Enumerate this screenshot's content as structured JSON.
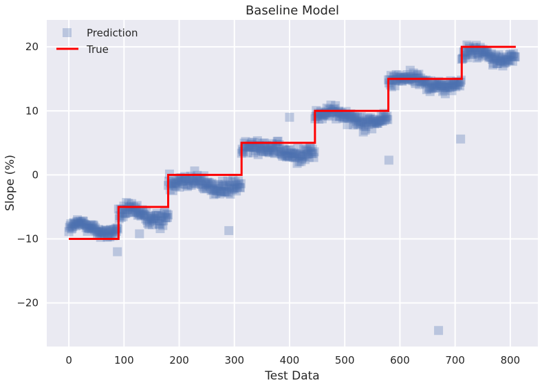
{
  "chart_data": {
    "type": "scatter",
    "title": "Baseline Model",
    "xlabel": "Test Data",
    "ylabel": "Slope (%)",
    "xlim": [
      -40,
      850
    ],
    "ylim": [
      -26.8,
      24.2
    ],
    "xticks": [
      0,
      100,
      200,
      300,
      400,
      500,
      600,
      700,
      800
    ],
    "yticks": [
      -20,
      -10,
      0,
      10,
      20
    ],
    "xtick_labels": [
      "0",
      "100",
      "200",
      "300",
      "400",
      "500",
      "600",
      "700",
      "800"
    ],
    "ytick_labels": [
      "−20",
      "−10",
      "0",
      "10",
      "20"
    ],
    "grid": true,
    "legend_position": "top-left",
    "series": [
      {
        "name": "Prediction",
        "kind": "scatter",
        "marker": "square",
        "color": "#4c72b0",
        "opacity": 0.3,
        "segments": [
          {
            "x_start": 0,
            "x_end": 90,
            "base": -8.4,
            "noise": 1.1
          },
          {
            "x_start": 90,
            "x_end": 180,
            "base": -6.3,
            "noise": 1.4
          },
          {
            "x_start": 180,
            "x_end": 313,
            "base": -1.4,
            "noise": 1.6
          },
          {
            "x_start": 313,
            "x_end": 446,
            "base": 3.8,
            "noise": 1.5
          },
          {
            "x_start": 446,
            "x_end": 579,
            "base": 9.0,
            "noise": 1.4
          },
          {
            "x_start": 579,
            "x_end": 712,
            "base": 14.5,
            "noise": 1.3
          },
          {
            "x_start": 712,
            "x_end": 810,
            "base": 18.6,
            "noise": 1.3
          }
        ],
        "outliers": [
          {
            "x": 88,
            "y": -12.0
          },
          {
            "x": 128,
            "y": -9.2
          },
          {
            "x": 290,
            "y": -8.7
          },
          {
            "x": 400,
            "y": 9.0
          },
          {
            "x": 580,
            "y": 2.3
          },
          {
            "x": 710,
            "y": 5.6
          },
          {
            "x": 670,
            "y": -24.3
          }
        ]
      },
      {
        "name": "True",
        "kind": "step",
        "color": "#ff0000",
        "points": [
          {
            "x": 0,
            "y": -10
          },
          {
            "x": 90,
            "y": -10
          },
          {
            "x": 90,
            "y": -5
          },
          {
            "x": 180,
            "y": -5
          },
          {
            "x": 180,
            "y": 0
          },
          {
            "x": 313,
            "y": 0
          },
          {
            "x": 313,
            "y": 5
          },
          {
            "x": 446,
            "y": 5
          },
          {
            "x": 446,
            "y": 10
          },
          {
            "x": 579,
            "y": 10
          },
          {
            "x": 579,
            "y": 15
          },
          {
            "x": 712,
            "y": 15
          },
          {
            "x": 712,
            "y": 20
          },
          {
            "x": 810,
            "y": 20
          }
        ]
      }
    ]
  }
}
